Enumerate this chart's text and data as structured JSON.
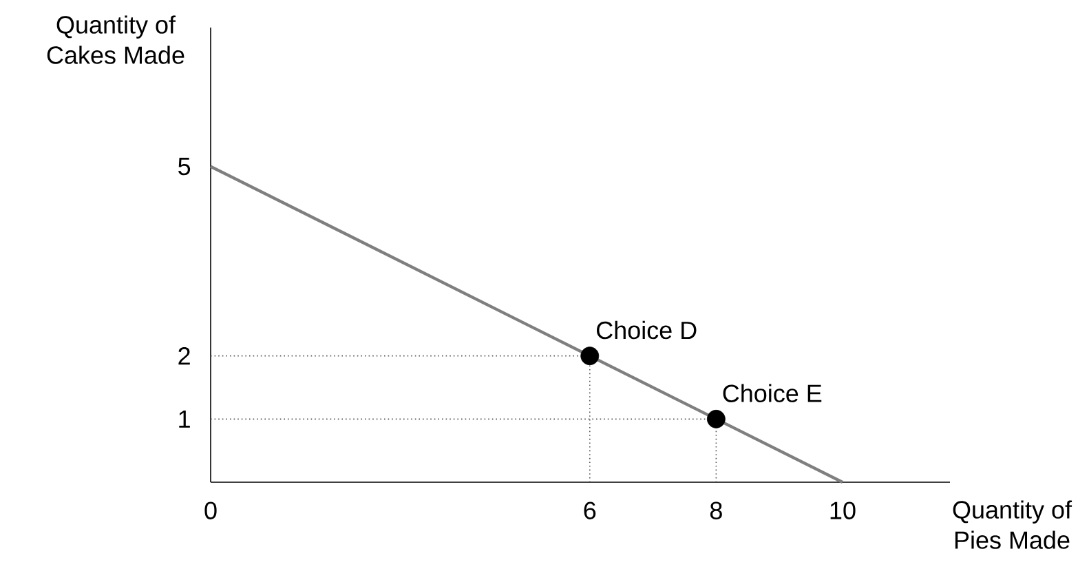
{
  "chart_data": {
    "type": "line",
    "xlabel": "Quantity of Pies Made",
    "ylabel": "Quantity of Cakes Made",
    "xlim": [
      0,
      11.7
    ],
    "ylim": [
      0,
      7.2
    ],
    "xticks": [
      0,
      6,
      8,
      10
    ],
    "yticks": [
      1,
      2,
      5
    ],
    "series": [
      {
        "color": "#7f7f7f",
        "x": [
          0,
          10
        ],
        "values": [
          5,
          0
        ],
        "line_style": "solid",
        "marker": "none"
      },
      {
        "type": "line",
        "color": "#555555",
        "x": [
          0,
          6
        ],
        "values": [
          2,
          2
        ],
        "line_style": "dotted",
        "marker": "none"
      },
      {
        "type": "line",
        "color": "#555555",
        "x": [
          6,
          6
        ],
        "values": [
          0,
          2
        ],
        "line_style": "dotted",
        "marker": "none"
      },
      {
        "type": "line",
        "color": "#555555",
        "x": [
          0,
          8
        ],
        "values": [
          1,
          1
        ],
        "line_style": "dotted",
        "marker": "none"
      },
      {
        "type": "line",
        "color": "#555555",
        "x": [
          8,
          8
        ],
        "values": [
          0,
          1
        ],
        "line_style": "dotted",
        "marker": "none"
      },
      {
        "type": "scatter",
        "color": "#000000",
        "x": [
          6,
          8
        ],
        "values": [
          2,
          1
        ],
        "marker": "circle"
      }
    ],
    "annotations": [
      {
        "text": "Choice D",
        "x": 6,
        "y": 2
      },
      {
        "text": "Choice E",
        "x": 8,
        "y": 1
      }
    ]
  }
}
